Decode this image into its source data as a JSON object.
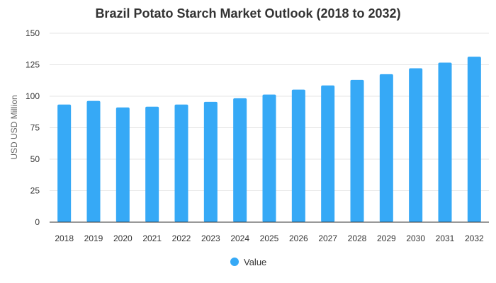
{
  "chart_data": {
    "type": "bar",
    "title": "Brazil Potato Starch Market Outlook (2018 to 2032)",
    "xlabel": "",
    "ylabel": "USD USD Million",
    "categories": [
      "2018",
      "2019",
      "2020",
      "2021",
      "2022",
      "2023",
      "2024",
      "2025",
      "2026",
      "2027",
      "2028",
      "2029",
      "2030",
      "2031",
      "2032"
    ],
    "series": [
      {
        "name": "Value",
        "color": "#36a9f6",
        "values": [
          93.4,
          96.3,
          91.1,
          91.7,
          93.4,
          95.6,
          98.4,
          101.3,
          105.3,
          108.6,
          113.0,
          117.5,
          122.2,
          126.7,
          131.4
        ]
      }
    ],
    "ylim": [
      0,
      150
    ],
    "yticks": [
      0,
      25,
      50,
      75,
      100,
      125,
      150
    ],
    "grid": true,
    "legend_position": "bottom"
  }
}
